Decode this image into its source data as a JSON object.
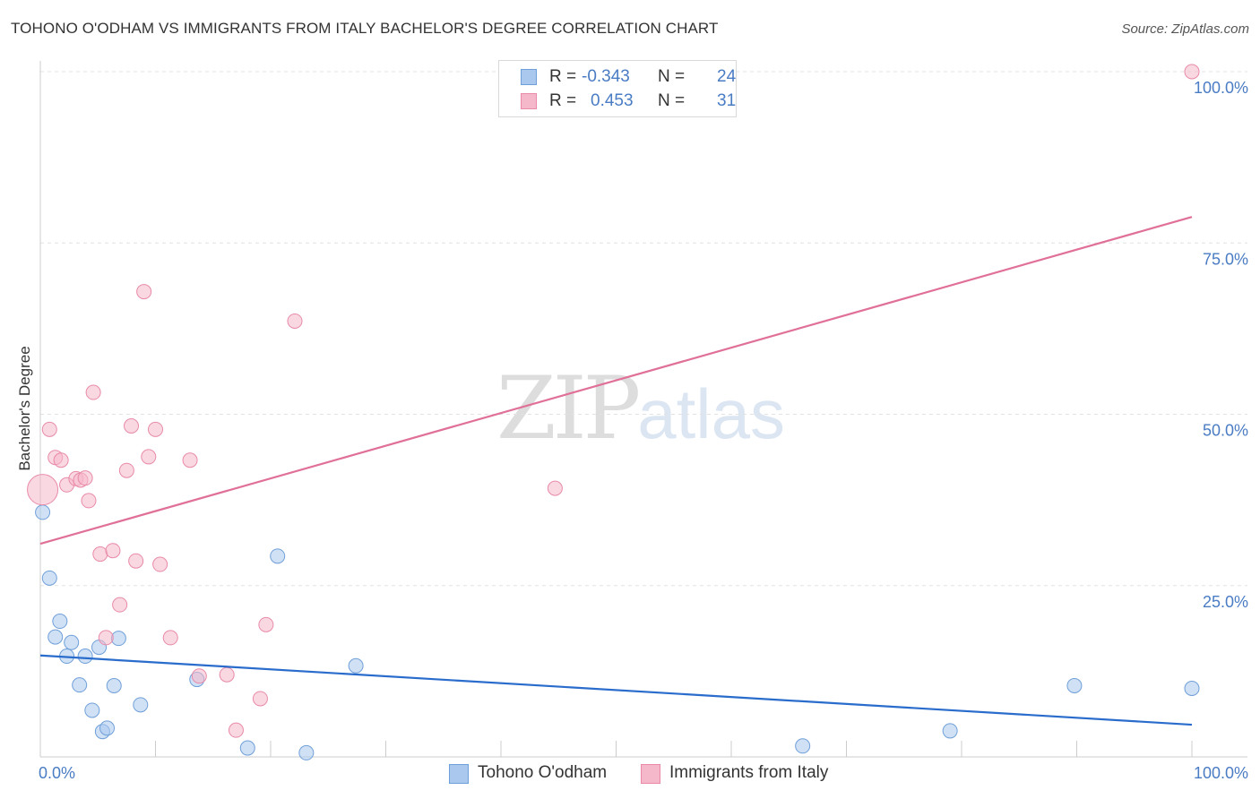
{
  "title": "TOHONO O'ODHAM VS IMMIGRANTS FROM ITALY BACHELOR'S DEGREE CORRELATION CHART",
  "source": "Source: ZipAtlas.com",
  "watermark": {
    "zip": "ZIP",
    "atlas": "atlas"
  },
  "colors": {
    "blue_fill": "#aac8ee",
    "blue_stroke": "#6f9fd8",
    "blue_line": "#2a6ccc",
    "pink_fill": "#f5b8cb",
    "pink_stroke": "#e88aa8",
    "pink_line": "#e07098",
    "grid": "#e2e2e2",
    "tick_text": "#4a7cc4"
  },
  "legend": {
    "rows": [
      {
        "r_label": "R =",
        "r_value": "-0.343",
        "n_label": "N =",
        "n_value": "24"
      },
      {
        "r_label": "R =",
        "r_value": "0.453",
        "n_label": "N =",
        "n_value": "31"
      }
    ]
  },
  "chart_data": {
    "type": "scatter",
    "title": "TOHONO O'ODHAM VS IMMIGRANTS FROM ITALY BACHELOR'S DEGREE CORRELATION CHART",
    "xlabel": "",
    "ylabel": "Bachelor's Degree",
    "xlim": [
      0,
      100
    ],
    "ylim": [
      0,
      100
    ],
    "x_tick_labels": [
      "0.0%",
      "100.0%"
    ],
    "y_ticks": [
      25,
      50,
      75,
      100
    ],
    "y_tick_labels": [
      "25.0%",
      "50.0%",
      "75.0%",
      "100.0%"
    ],
    "grid": true,
    "legend_position": "top-center",
    "series": [
      {
        "name": "Tohono O'odham",
        "color": "#aac8ee",
        "trend": {
          "x": [
            0,
            100
          ],
          "y": [
            14.8,
            4.7
          ]
        },
        "points": [
          {
            "x": 0.2,
            "y": 35.7
          },
          {
            "x": 0.8,
            "y": 26.1
          },
          {
            "x": 1.3,
            "y": 17.5
          },
          {
            "x": 1.7,
            "y": 19.8
          },
          {
            "x": 2.3,
            "y": 14.7
          },
          {
            "x": 2.7,
            "y": 16.7
          },
          {
            "x": 3.4,
            "y": 10.5
          },
          {
            "x": 3.9,
            "y": 14.7
          },
          {
            "x": 4.5,
            "y": 6.8
          },
          {
            "x": 5.1,
            "y": 16.0
          },
          {
            "x": 5.4,
            "y": 3.7
          },
          {
            "x": 5.8,
            "y": 4.2
          },
          {
            "x": 6.4,
            "y": 10.4
          },
          {
            "x": 6.8,
            "y": 17.3
          },
          {
            "x": 8.7,
            "y": 7.6
          },
          {
            "x": 13.6,
            "y": 11.3
          },
          {
            "x": 18.0,
            "y": 1.3
          },
          {
            "x": 20.6,
            "y": 29.3
          },
          {
            "x": 23.1,
            "y": 0.6
          },
          {
            "x": 27.4,
            "y": 13.3
          },
          {
            "x": 66.2,
            "y": 1.6
          },
          {
            "x": 79.0,
            "y": 3.8
          },
          {
            "x": 89.8,
            "y": 10.4
          },
          {
            "x": 100.0,
            "y": 10.0
          }
        ]
      },
      {
        "name": "Immigrants from Italy",
        "color": "#f5b8cb",
        "trend": {
          "x": [
            0,
            100
          ],
          "y": [
            31.1,
            78.8
          ]
        },
        "points": [
          {
            "x": 0.2,
            "y": 39.0,
            "big": true
          },
          {
            "x": 0.8,
            "y": 47.8
          },
          {
            "x": 1.3,
            "y": 43.7
          },
          {
            "x": 1.8,
            "y": 43.3
          },
          {
            "x": 2.3,
            "y": 39.7
          },
          {
            "x": 3.1,
            "y": 40.6
          },
          {
            "x": 3.5,
            "y": 40.4
          },
          {
            "x": 3.9,
            "y": 40.7
          },
          {
            "x": 4.2,
            "y": 37.4
          },
          {
            "x": 4.6,
            "y": 53.2
          },
          {
            "x": 5.2,
            "y": 29.6
          },
          {
            "x": 5.7,
            "y": 17.4
          },
          {
            "x": 6.3,
            "y": 30.1
          },
          {
            "x": 6.9,
            "y": 22.2
          },
          {
            "x": 7.5,
            "y": 41.8
          },
          {
            "x": 7.9,
            "y": 48.3
          },
          {
            "x": 8.3,
            "y": 28.6
          },
          {
            "x": 9.0,
            "y": 67.9
          },
          {
            "x": 9.4,
            "y": 43.8
          },
          {
            "x": 10.0,
            "y": 47.8
          },
          {
            "x": 10.4,
            "y": 28.1
          },
          {
            "x": 11.3,
            "y": 17.4
          },
          {
            "x": 13.0,
            "y": 43.3
          },
          {
            "x": 13.8,
            "y": 11.8
          },
          {
            "x": 16.2,
            "y": 12.0
          },
          {
            "x": 17.0,
            "y": 3.9
          },
          {
            "x": 19.1,
            "y": 8.5
          },
          {
            "x": 19.6,
            "y": 19.3
          },
          {
            "x": 22.1,
            "y": 63.6
          },
          {
            "x": 44.7,
            "y": 39.2
          },
          {
            "x": 100.0,
            "y": 100.0
          }
        ]
      }
    ]
  }
}
